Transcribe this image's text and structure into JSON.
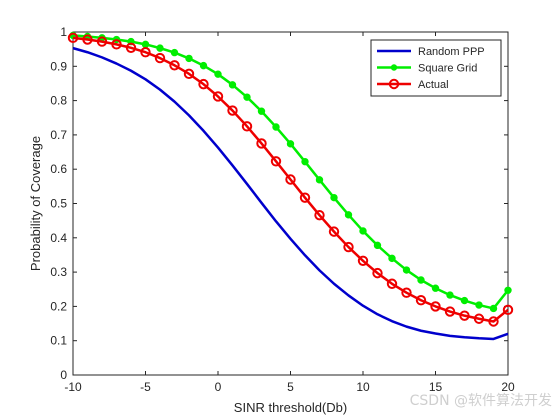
{
  "chart_data": {
    "type": "line",
    "title": "",
    "xlabel": "SINR threshold(Db)",
    "ylabel": "Probability of Coverage",
    "xlim": [
      -10,
      20
    ],
    "ylim": [
      0,
      1
    ],
    "xticks": [
      -10,
      -5,
      0,
      5,
      10,
      15,
      20
    ],
    "yticks": [
      0,
      0.1,
      0.2,
      0.3,
      0.4,
      0.5,
      0.6,
      0.7,
      0.8,
      0.9,
      1
    ],
    "grid": false,
    "legend": "top-right",
    "x": [
      -10,
      -9,
      -8,
      -7,
      -6,
      -5,
      -4,
      -3,
      -2,
      -1,
      0,
      1,
      2,
      3,
      4,
      5,
      6,
      7,
      8,
      9,
      10,
      11,
      12,
      13,
      14,
      15,
      16,
      17,
      18,
      19,
      20
    ],
    "series": [
      {
        "name": "Random PPP",
        "color": "#0000cc",
        "marker": "none",
        "values": [
          0.953,
          0.941,
          0.926,
          0.908,
          0.887,
          0.862,
          0.832,
          0.797,
          0.757,
          0.712,
          0.663,
          0.611,
          0.557,
          0.502,
          0.448,
          0.397,
          0.349,
          0.305,
          0.266,
          0.232,
          0.202,
          0.177,
          0.157,
          0.141,
          0.129,
          0.121,
          0.114,
          0.11,
          0.107,
          0.105,
          0.12
        ]
      },
      {
        "name": "Square Grid",
        "color": "#00ee00",
        "marker": "dot",
        "values": [
          0.99,
          0.987,
          0.983,
          0.978,
          0.972,
          0.964,
          0.953,
          0.94,
          0.923,
          0.902,
          0.877,
          0.846,
          0.81,
          0.769,
          0.723,
          0.674,
          0.622,
          0.569,
          0.517,
          0.467,
          0.42,
          0.378,
          0.34,
          0.306,
          0.277,
          0.253,
          0.233,
          0.217,
          0.204,
          0.194,
          0.247
        ]
      },
      {
        "name": "Actual",
        "color": "#ee0000",
        "marker": "circle",
        "values": [
          0.983,
          0.978,
          0.972,
          0.964,
          0.954,
          0.941,
          0.924,
          0.903,
          0.878,
          0.848,
          0.812,
          0.771,
          0.725,
          0.675,
          0.623,
          0.57,
          0.517,
          0.466,
          0.418,
          0.373,
          0.333,
          0.297,
          0.266,
          0.24,
          0.218,
          0.2,
          0.185,
          0.173,
          0.164,
          0.156,
          0.19
        ]
      }
    ]
  },
  "watermark": "CSDN @软件算法开发"
}
